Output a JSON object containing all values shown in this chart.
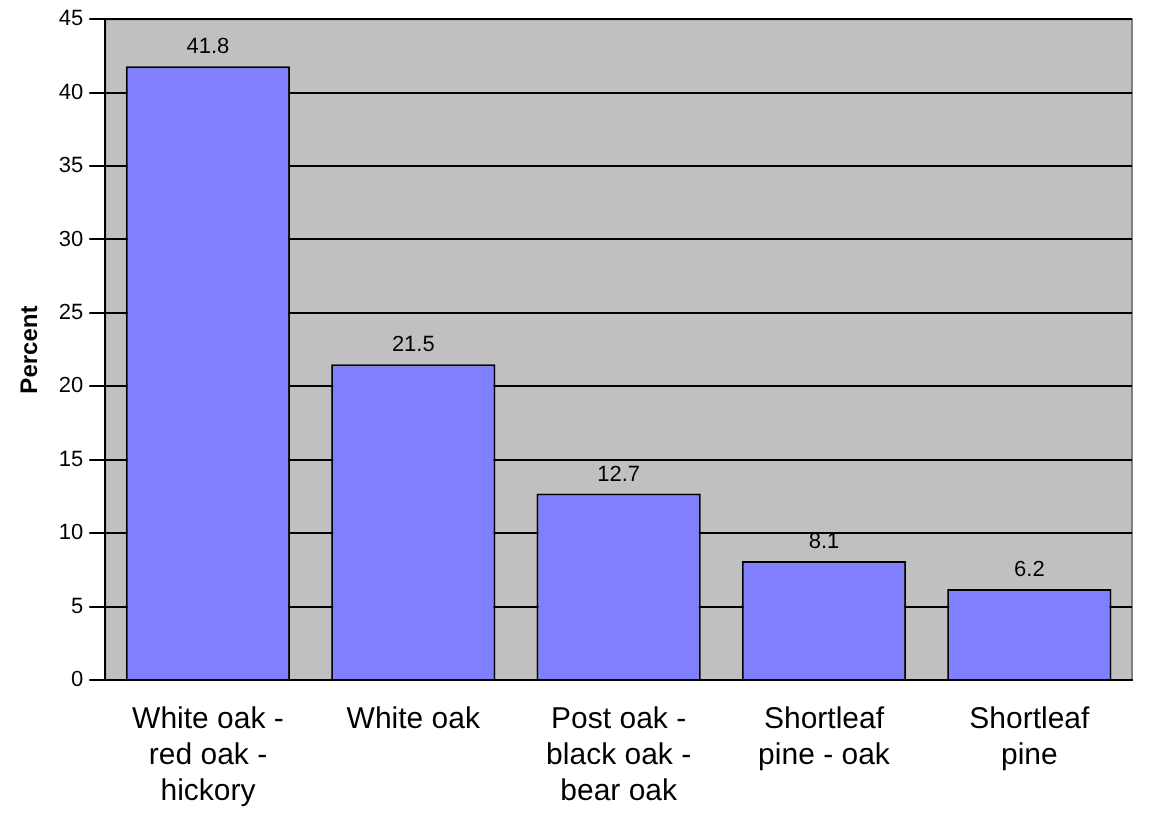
{
  "chart_data": {
    "type": "bar",
    "ylabel": "Percent",
    "categories": [
      "White oak - red oak - hickory",
      "White oak",
      "Post oak - black oak - bear oak",
      "Shortleaf pine - oak",
      "Shortleaf pine"
    ],
    "values": [
      41.8,
      21.5,
      12.7,
      8.1,
      6.2
    ],
    "color": "#8080ff",
    "ylim": [
      0,
      45
    ],
    "yticks": [
      0,
      5,
      10,
      15,
      20,
      25,
      30,
      35,
      40,
      45
    ],
    "grid": "y",
    "data_labels": true,
    "legend": false
  }
}
